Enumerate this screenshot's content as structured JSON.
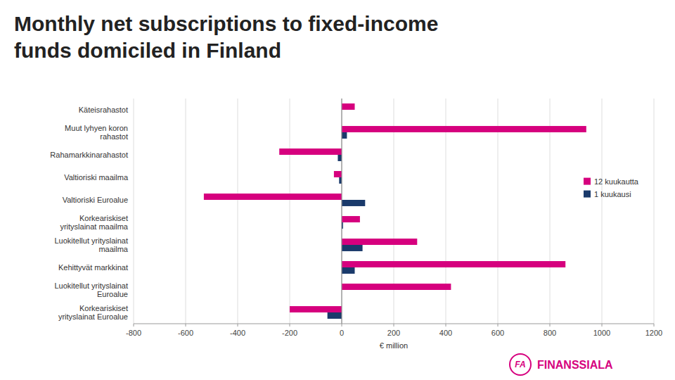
{
  "chart_data": {
    "type": "bar",
    "orientation": "horizontal",
    "title": "Monthly net subscriptions to fixed-income\nfunds domiciled in Finland",
    "categories": [
      "Käteisrahastot",
      "Muut lyhyen koron\nrahastot",
      "Rahamarkkinarahastot",
      "Valtioriski maailma",
      "Valtioriski Euroalue",
      "Korkeariskiset\nyrityslainat maailma",
      "Luokitellut yrityslainat\nmaailma",
      "Kehittyvät markkinat",
      "Luokitellut yrityslainat\nEuroalue",
      "Korkeariskiset\nyrityslainat Euroalue"
    ],
    "series": [
      {
        "name": "12 kuukautta",
        "color": "#d6007e",
        "values": [
          50,
          940,
          -240,
          -30,
          -530,
          70,
          290,
          860,
          420,
          -200
        ]
      },
      {
        "name": "1 kuukausi",
        "color": "#1a3a6b",
        "values": [
          0,
          20,
          -15,
          -10,
          90,
          5,
          80,
          50,
          0,
          -55
        ]
      }
    ],
    "xlabel": "€ million",
    "xlim": [
      -800,
      1200
    ],
    "xticks": [
      -800,
      -600,
      -400,
      -200,
      0,
      200,
      400,
      600,
      800,
      1000,
      1200
    ],
    "grid": true,
    "legend": "upper right",
    "annotations": [
      {
        "text": "FA",
        "color": "#d6007e"
      },
      {
        "text": "FINANSSIALA",
        "color": "#d6007e"
      }
    ]
  }
}
